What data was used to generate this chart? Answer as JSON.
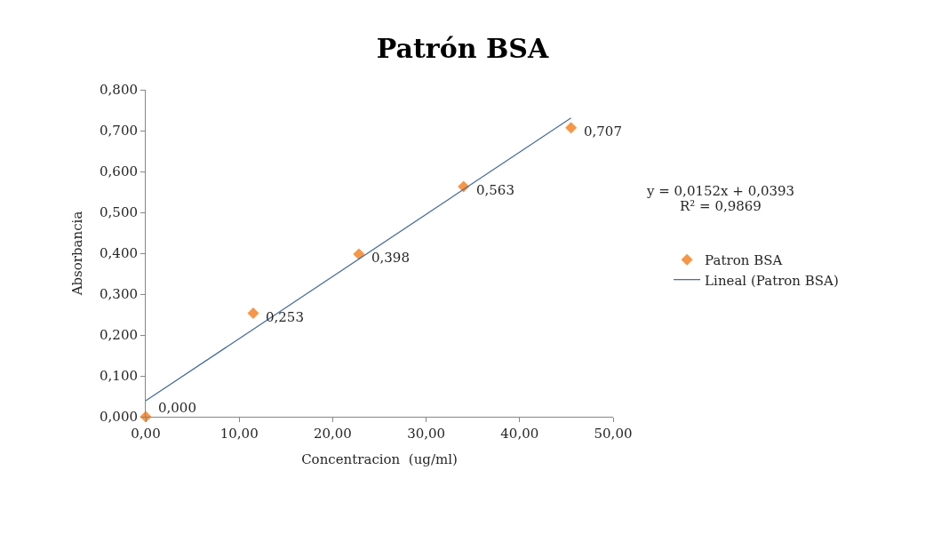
{
  "chart_data": {
    "type": "scatter",
    "title": "Patrón BSA",
    "xlabel": "Concentracion  (ug/ml)",
    "ylabel": "Absorbancia",
    "series": [
      {
        "name": "Patron BSA",
        "marker": "diamond",
        "color": "#f79646",
        "x": [
          0,
          11.5,
          22.8,
          34.0,
          45.5
        ],
        "values": [
          0.0,
          0.253,
          0.398,
          0.563,
          0.707
        ],
        "value_labels": [
          "0,000",
          "0,253",
          "0,398",
          "0,563",
          "0,707"
        ]
      },
      {
        "name": "Lineal (Patron BSA)",
        "type": "line",
        "marker": "none",
        "line_style": "solid",
        "color": "#4a6f9c",
        "x": [
          0,
          45.5
        ],
        "values": [
          0.039,
          0.731
        ]
      }
    ],
    "annotations": [
      "y = 0,0152x + 0,0393",
      "R² = 0,9869"
    ],
    "xlim": [
      0,
      50
    ],
    "xticks": [
      {
        "value": 0,
        "label": "0,00"
      },
      {
        "value": 10,
        "label": "10,00"
      },
      {
        "value": 20,
        "label": "20,00"
      },
      {
        "value": 30,
        "label": "30,00"
      },
      {
        "value": 40,
        "label": "40,00"
      },
      {
        "value": 50,
        "label": "50,00"
      }
    ],
    "ylim": [
      0,
      0.8
    ],
    "yticks": [
      {
        "value": 0,
        "label": "0,000"
      },
      {
        "value": 0.1,
        "label": "0,100"
      },
      {
        "value": 0.2,
        "label": "0,200"
      },
      {
        "value": 0.3,
        "label": "0,300"
      },
      {
        "value": 0.4,
        "label": "0,400"
      },
      {
        "value": 0.5,
        "label": "0,500"
      },
      {
        "value": 0.6,
        "label": "0,600"
      },
      {
        "value": 0.7,
        "label": "0,700"
      },
      {
        "value": 0.8,
        "label": "0,800"
      }
    ],
    "legend": "right"
  }
}
